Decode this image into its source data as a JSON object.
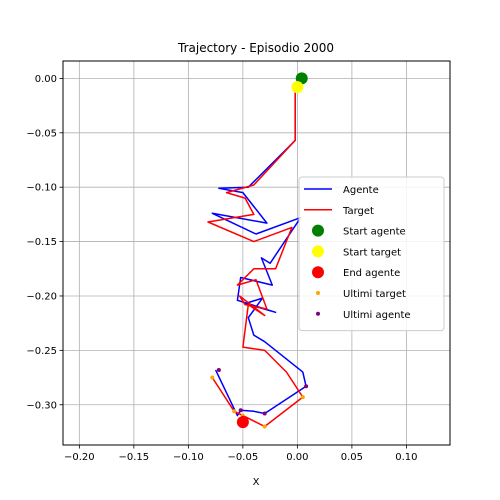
{
  "chart_data": {
    "type": "line",
    "title": "Trajectory - Episodio 2000",
    "xlabel": "X",
    "ylabel": "",
    "xlim": [
      -0.215,
      0.14
    ],
    "ylim": [
      -0.337,
      0.016
    ],
    "xticks": [
      -0.2,
      -0.15,
      -0.1,
      -0.05,
      0.0,
      0.05,
      0.1
    ],
    "xtick_labels": [
      "−0.20",
      "−0.15",
      "−0.10",
      "−0.05",
      "0.00",
      "0.05",
      "0.10"
    ],
    "yticks": [
      0.0,
      -0.05,
      -0.1,
      -0.15,
      -0.2,
      -0.25,
      -0.3
    ],
    "ytick_labels": [
      "0.00",
      "−0.05",
      "−0.10",
      "−0.15",
      "−0.20",
      "−0.25",
      "−0.30"
    ],
    "grid": true,
    "legend_position": "center-right",
    "series": [
      {
        "name": "Agente",
        "kind": "line",
        "color": "#0000ff",
        "x": [
          0.004,
          -0.002,
          -0.002,
          -0.045,
          -0.072,
          -0.05,
          -0.028,
          -0.078,
          -0.038,
          0.003,
          -0.025,
          -0.033,
          -0.023,
          -0.052,
          -0.055,
          -0.02,
          -0.048,
          -0.032,
          -0.045,
          -0.04,
          -0.03,
          0.005,
          0.008,
          -0.03,
          -0.04,
          -0.052,
          -0.055,
          -0.075
        ],
        "y": [
          0.0,
          -0.01,
          -0.057,
          -0.1,
          -0.101,
          -0.105,
          -0.133,
          -0.124,
          -0.143,
          -0.128,
          -0.17,
          -0.165,
          -0.19,
          -0.183,
          -0.204,
          -0.215,
          -0.207,
          -0.202,
          -0.22,
          -0.236,
          -0.242,
          -0.27,
          -0.283,
          -0.308,
          -0.306,
          -0.305,
          -0.31,
          -0.268
        ]
      },
      {
        "name": "Target",
        "kind": "line",
        "color": "#ff0000",
        "x": [
          0.0,
          -0.002,
          -0.002,
          -0.04,
          -0.065,
          -0.048,
          -0.04,
          -0.082,
          -0.04,
          -0.005,
          -0.02,
          -0.04,
          -0.055,
          -0.038,
          -0.028,
          -0.048,
          -0.053,
          -0.03,
          -0.045,
          -0.05,
          -0.03,
          -0.01,
          0.005,
          -0.03,
          -0.05,
          -0.058,
          -0.078
        ],
        "y": [
          -0.008,
          -0.01,
          -0.057,
          -0.098,
          -0.105,
          -0.11,
          -0.125,
          -0.132,
          -0.15,
          -0.137,
          -0.175,
          -0.175,
          -0.19,
          -0.185,
          -0.212,
          -0.208,
          -0.2,
          -0.218,
          -0.208,
          -0.247,
          -0.25,
          -0.27,
          -0.293,
          -0.32,
          -0.31,
          -0.306,
          -0.275
        ]
      },
      {
        "name": "Start agente",
        "kind": "marker",
        "color": "#008000",
        "size": 12,
        "x": [
          0.004
        ],
        "y": [
          0.0
        ]
      },
      {
        "name": "Start target",
        "kind": "marker",
        "color": "#ffff00",
        "size": 12,
        "x": [
          0.0
        ],
        "y": [
          -0.008
        ]
      },
      {
        "name": "End agente",
        "kind": "marker",
        "color": "#ff0000",
        "size": 12,
        "x": [
          -0.05
        ],
        "y": [
          -0.316
        ]
      },
      {
        "name": "Ultimi target",
        "kind": "points",
        "color": "#ffa500",
        "size": 4,
        "x": [
          -0.078,
          -0.058,
          -0.05,
          -0.03,
          0.005
        ],
        "y": [
          -0.275,
          -0.306,
          -0.31,
          -0.32,
          -0.293
        ]
      },
      {
        "name": "Ultimi agente",
        "kind": "points",
        "color": "#800080",
        "size": 4,
        "x": [
          -0.072,
          -0.052,
          -0.05,
          -0.03,
          0.008
        ],
        "y": [
          -0.268,
          -0.305,
          -0.312,
          -0.308,
          -0.283
        ]
      }
    ]
  }
}
